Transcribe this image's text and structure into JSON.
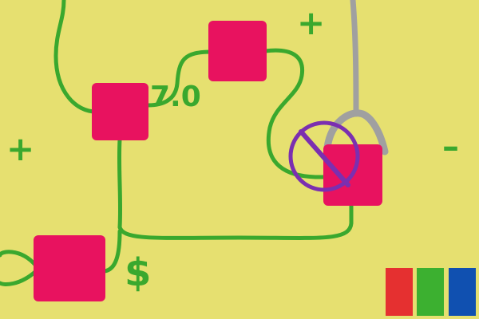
{
  "canvas": {
    "background_color": "#e6e070"
  },
  "colors": {
    "wire": "#3aa82e",
    "node": "#e8125f",
    "crane": "#a0a0a0",
    "blocked": "#7b2fb0"
  },
  "labels": {
    "edge_value": "7.0",
    "currency": "$",
    "plus_top": "+",
    "plus_left": "+",
    "minus_right": "–"
  },
  "icons": {
    "crane_hook": "crane-hook-icon",
    "forbidden": "no-entry-icon"
  },
  "palette": {
    "swatches": [
      {
        "name": "red",
        "color": "#e53030"
      },
      {
        "name": "green",
        "color": "#3cb030"
      },
      {
        "name": "blue",
        "color": "#1050b0"
      }
    ]
  }
}
